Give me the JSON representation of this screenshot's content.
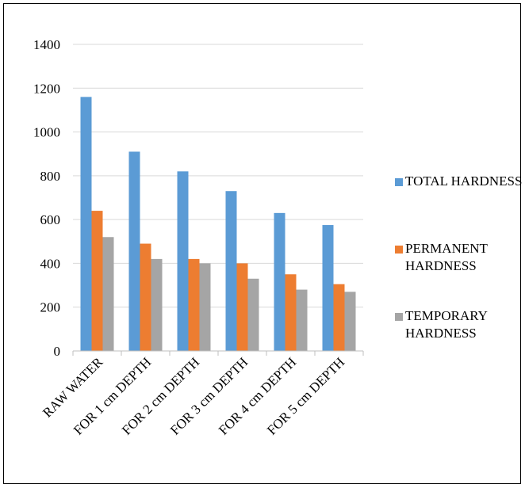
{
  "chart_data": {
    "type": "bar",
    "categories": [
      "RAW WATER",
      "FOR 1 cm DEPTH",
      "FOR 2 cm DEPTH",
      "FOR 3 cm DEPTH",
      "FOR 4 cm DEPTH",
      "FOR 5 cm DEPTH"
    ],
    "series": [
      {
        "name": "TOTAL HARDNESS",
        "color": "#5B9BD5",
        "values": [
          1160,
          910,
          820,
          730,
          630,
          575
        ]
      },
      {
        "name": "PERMANENT HARDNESS",
        "color": "#ED7D31",
        "values": [
          640,
          490,
          420,
          400,
          350,
          305
        ]
      },
      {
        "name": "TEMPORARY HARDNESS",
        "color": "#A5A5A5",
        "values": [
          520,
          420,
          400,
          330,
          280,
          270
        ]
      }
    ],
    "yticks": [
      "0",
      "200",
      "400",
      "600",
      "800",
      "1000",
      "1200",
      "1400"
    ],
    "ylim": [
      0,
      1400
    ],
    "title": "",
    "xlabel": "",
    "ylabel": "",
    "grid": true,
    "legend_position": "right"
  }
}
